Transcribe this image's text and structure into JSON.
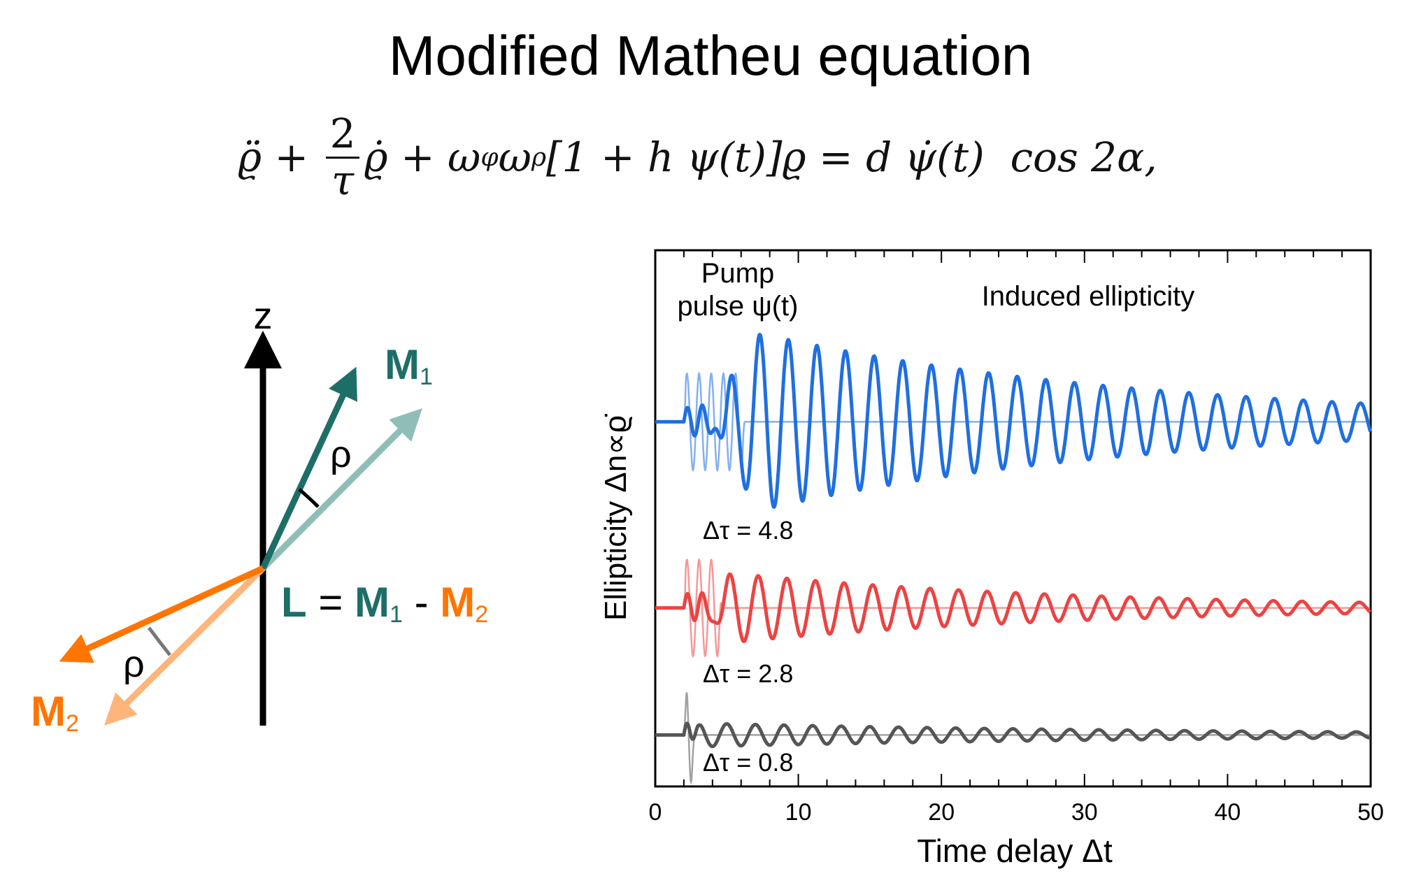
{
  "title": "Modified Matheu equation",
  "equation": {
    "p1": "ϱ̈ + ",
    "frac_num": "2",
    "frac_den": "τ",
    "p2": "ϱ̇ + ω",
    "sub1": "φ",
    "p3": "ω",
    "sub2": "ρ",
    "p4": "[1 + h ψ(t)]ϱ = d ψ̇(t)  cos 2α,"
  },
  "diagram": {
    "z_label": "z",
    "m1_label": "M",
    "m1_sub": "1",
    "m2_label": "M",
    "m2_sub": "2",
    "rho_upper": "ρ",
    "rho_lower": "ρ",
    "l_eq": {
      "l": "L",
      "eq": " = ",
      "m1": "M",
      "m1_sub": "1",
      "minus": " - ",
      "m2": "M",
      "m2_sub": "2"
    },
    "colors": {
      "axis": "#000000",
      "m1": "#1e6e68",
      "m1_light": "#8fbdb8",
      "m2": "#ff7500",
      "m2_light": "#ffb47a",
      "angle_upper": "#000000",
      "angle_lower": "#777777"
    }
  },
  "chart_data": {
    "type": "line",
    "title": "",
    "xlabel": "Time delay Δt",
    "ylabel": "Ellipticity Δn∝ϱ̇",
    "xlim": [
      0,
      50
    ],
    "ylim": [
      0,
      1
    ],
    "xticks": [
      0,
      10,
      20,
      30,
      40,
      50
    ],
    "xtick_labels": [
      "0",
      "10",
      "20",
      "30",
      "40",
      "50"
    ],
    "minor_xtick_step": 2,
    "grid": false,
    "annotations": {
      "pump": [
        "Pump",
        "pulse ψ(t)"
      ],
      "induced": "Induced ellipticity"
    },
    "series": [
      {
        "name": "Δτ = 4.8",
        "color": "#1f6fe0",
        "baseline": 0.68,
        "pump": {
          "start": 2.0,
          "end": 6.0,
          "period": 0.85,
          "amplitude": 0.09
        },
        "response": {
          "start": 2.0,
          "peak_time": 7.3,
          "period": 2.0,
          "peak_amplitude": 0.165,
          "decay_time": 27
        }
      },
      {
        "name": "Δτ = 2.8",
        "color": "#ec4343",
        "baseline": 0.333,
        "pump": {
          "start": 2.0,
          "end": 4.4,
          "period": 0.85,
          "amplitude": 0.09
        },
        "response": {
          "start": 2.0,
          "peak_time": 5.2,
          "period": 2.0,
          "peak_amplitude": 0.065,
          "decay_time": 24
        }
      },
      {
        "name": "Δτ = 0.8",
        "color": "#555555",
        "baseline": 0.096,
        "pump": {
          "start": 2.0,
          "end": 2.8,
          "period": 0.8,
          "amplitude": 0.08
        },
        "response": {
          "start": 2.0,
          "peak_time": 3.0,
          "period": 2.0,
          "peak_amplitude": 0.022,
          "decay_time": 34
        }
      }
    ]
  }
}
